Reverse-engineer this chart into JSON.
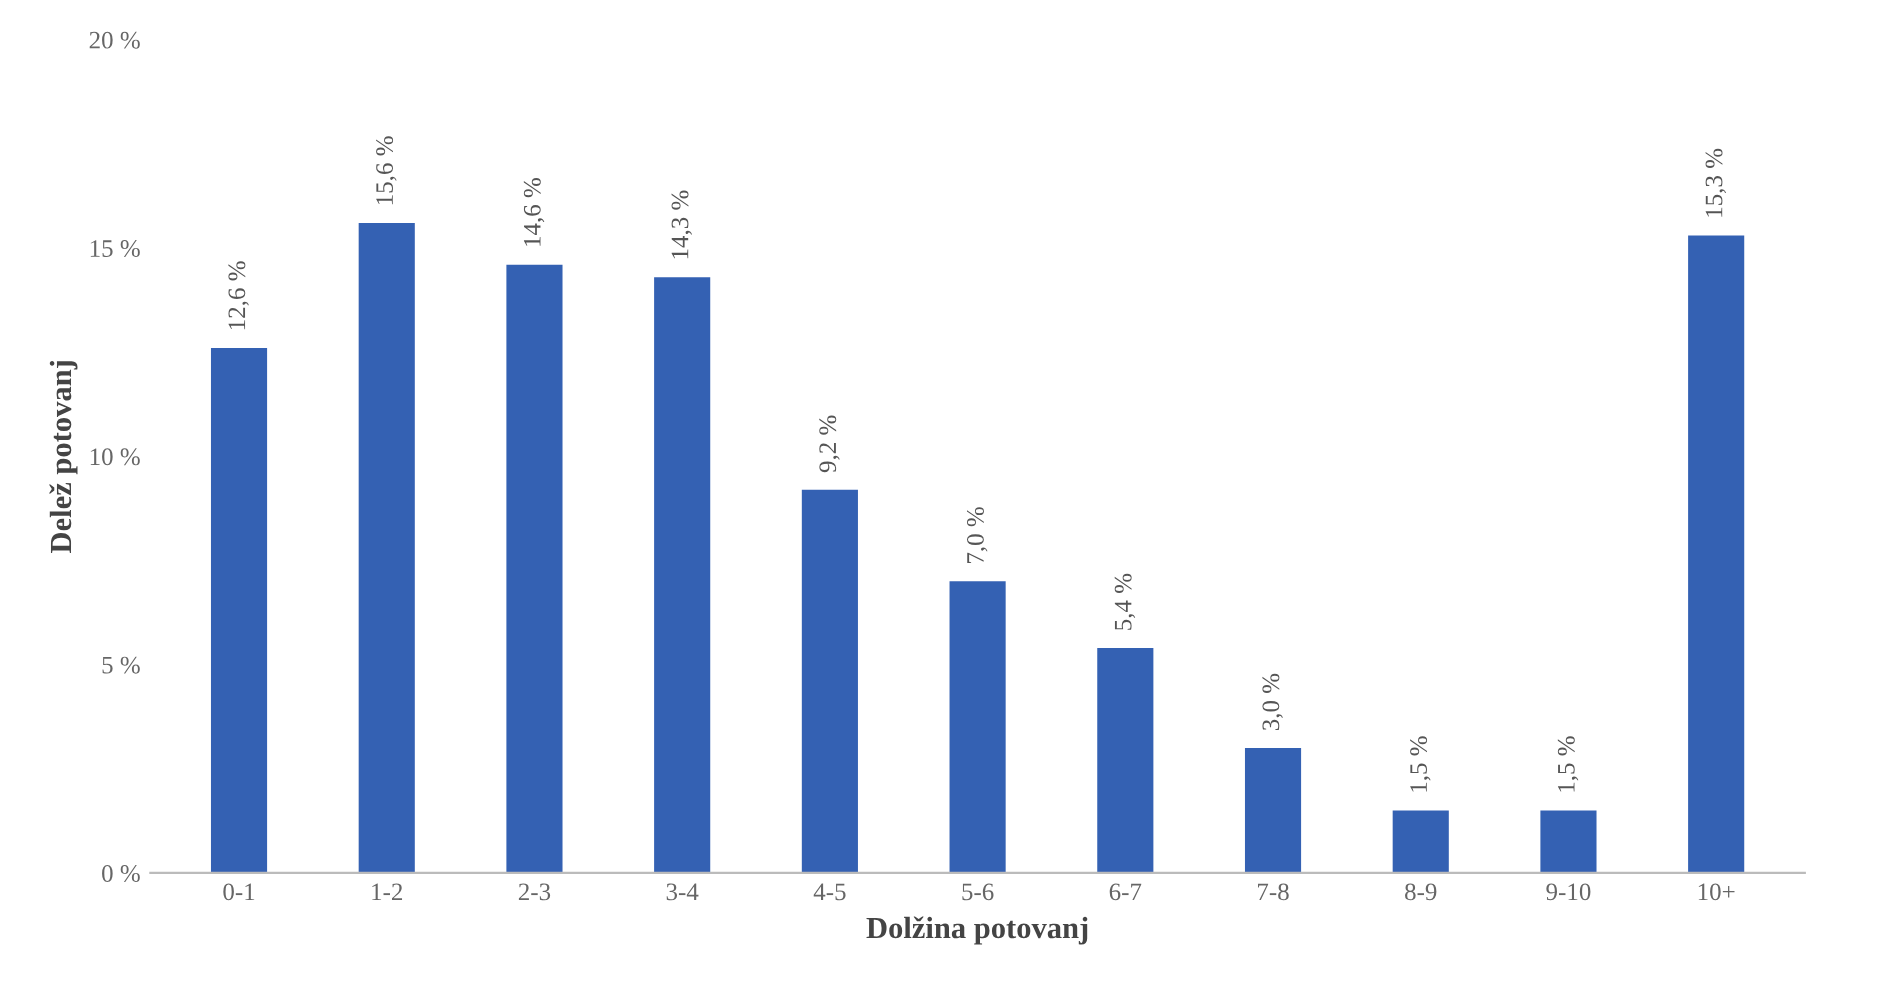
{
  "chart_data": {
    "type": "bar",
    "xlabel": "Dolžina potovanj",
    "ylabel": "Delež potovanj",
    "categories": [
      "0-1",
      "1-2",
      "2-3",
      "3-4",
      "4-5",
      "5-6",
      "6-7",
      "7-8",
      "8-9",
      "9-10",
      "10+"
    ],
    "values": [
      12.6,
      15.6,
      14.6,
      14.3,
      9.2,
      7.0,
      5.4,
      3.0,
      1.5,
      1.5,
      15.3
    ],
    "value_labels": [
      "12,6 %",
      "15,6 %",
      "14,6 %",
      "14,3 %",
      "9,2 %",
      "7,0 %",
      "5,4 %",
      "3,0 %",
      "1,5 %",
      "1,5 %",
      "15,3 %"
    ],
    "color": "#3461b3",
    "ylim": [
      0,
      20
    ],
    "yticks": [
      {
        "value": 0,
        "label": "0 %"
      },
      {
        "value": 5,
        "label": "5 %"
      },
      {
        "value": 10,
        "label": "10 %"
      },
      {
        "value": 15,
        "label": "15 %"
      },
      {
        "value": 20,
        "label": "20 %"
      }
    ],
    "grid": false,
    "legend": false
  }
}
